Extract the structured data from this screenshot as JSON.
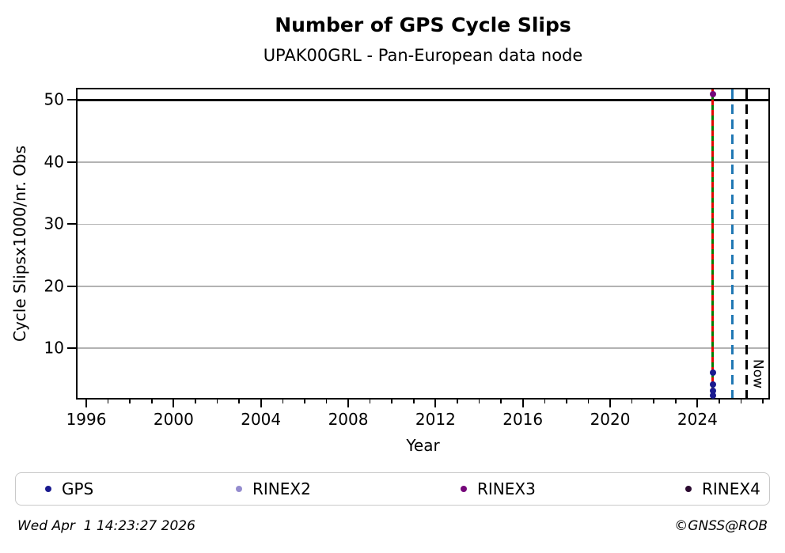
{
  "chart_data": {
    "type": "scatter",
    "title": "Number of GPS Cycle Slips",
    "subtitle": "UPAK00GRL - Pan-European data node",
    "xlabel": "Year",
    "ylabel": "Cycle Slipsx1000/nr. Obs",
    "xlim": [
      1995.6,
      2027.25
    ],
    "ylim": [
      2.0,
      51.7
    ],
    "x_major_ticks": [
      1996,
      2000,
      2004,
      2008,
      2012,
      2016,
      2020,
      2024
    ],
    "x_minor_tick_from": 1996,
    "x_minor_tick_to": 2027,
    "y_ticks": [
      10,
      20,
      30,
      40,
      50
    ],
    "grid": true,
    "grid_color": "#b3b3b3",
    "threshold_line": {
      "y": 50,
      "color": "#000000"
    },
    "series": [
      {
        "name": "GPS",
        "color": "#1a1a8f",
        "points": [
          [
            2024.7,
            6.1
          ],
          [
            2024.7,
            4.2
          ],
          [
            2024.7,
            3.1
          ],
          [
            2024.7,
            2.4
          ]
        ]
      },
      {
        "name": "RINEX2",
        "color": "#948cce",
        "points": []
      },
      {
        "name": "RINEX3",
        "color": "#75077a",
        "points": [
          [
            2024.7,
            50.9
          ]
        ]
      },
      {
        "name": "RINEX4",
        "color": "#2b0a30",
        "points": []
      }
    ],
    "vlines": [
      {
        "x": 2024.7,
        "color": "#007d00",
        "style": "solid",
        "dash": null,
        "label": "",
        "name": "vline-solid-green"
      },
      {
        "x": 2024.7,
        "color": "#e10600",
        "style": "dashed",
        "dash": [
          7,
          6
        ],
        "label": "",
        "name": "vline-dashed-red"
      },
      {
        "x": 2025.6,
        "color": "#1f77b4",
        "style": "dashed",
        "dash": [
          12,
          7
        ],
        "label": "",
        "name": "vline-dashed-blue"
      },
      {
        "x": 2026.25,
        "color": "#000000",
        "style": "dashed",
        "dash": [
          12,
          7
        ],
        "label": "Now",
        "name": "vline-dashed-black-now"
      }
    ],
    "legend_position": "bottom"
  },
  "legend": {
    "items": [
      {
        "label": "GPS",
        "color": "#1a1a8f"
      },
      {
        "label": "RINEX2",
        "color": "#948cce"
      },
      {
        "label": "RINEX3",
        "color": "#75077a"
      },
      {
        "label": "RINEX4",
        "color": "#2b0a30"
      }
    ]
  },
  "footer": {
    "timestamp": "Wed Apr  1 14:23:27 2026",
    "attribution": "©GNSS@ROB"
  }
}
